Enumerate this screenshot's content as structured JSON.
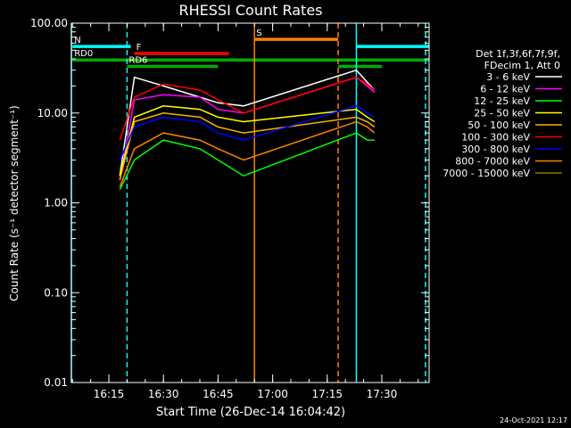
{
  "chart_data": {
    "type": "line",
    "title": "RHESSI Count Rates",
    "xlabel": "Start Time (26-Dec-14 16:04:42)",
    "ylabel": "Count Rate (s⁻¹ detector segment⁻¹)",
    "yscale": "log",
    "ylim": [
      0.01,
      100
    ],
    "xlim": [
      "16:04:42",
      "17:43:00"
    ],
    "x_ticks": [
      "16:15",
      "16:30",
      "16:45",
      "17:00",
      "17:15",
      "17:30"
    ],
    "y_ticks": [
      "0.01",
      "0.10",
      "1.00",
      "10.00",
      "100.00"
    ],
    "grid": false,
    "legend_position": "right",
    "legend_header": [
      "Det 1f,3f,6f,7f,9f,",
      "FDecim 1, Att 0"
    ],
    "series": [
      {
        "name": "3 - 6 keV",
        "color": "#ffffff",
        "x": [
          "16:18",
          "16:22",
          "16:30",
          "16:40",
          "16:45",
          "16:52",
          "17:23",
          "17:26",
          "17:28"
        ],
        "values": [
          2.0,
          25,
          20,
          15,
          13,
          12,
          30,
          22,
          18
        ]
      },
      {
        "name": "6 - 12 keV",
        "color": "#ff00ff",
        "x": [
          "16:18",
          "16:22",
          "16:30",
          "16:40",
          "16:45",
          "16:52",
          "17:23",
          "17:26",
          "17:28"
        ],
        "values": [
          1.8,
          14,
          16,
          15,
          11,
          10,
          25,
          20,
          17
        ]
      },
      {
        "name": "12 - 25 keV",
        "color": "#00ff00",
        "x": [
          "16:18",
          "16:22",
          "16:30",
          "16:40",
          "16:45",
          "16:52",
          "17:23",
          "17:26",
          "17:28"
        ],
        "values": [
          1.4,
          3,
          5,
          4,
          3,
          2,
          6,
          5,
          5
        ]
      },
      {
        "name": "25 - 50 keV",
        "color": "#ffff00",
        "x": [
          "16:18",
          "16:22",
          "16:30",
          "16:40",
          "16:45",
          "16:52",
          "17:23",
          "17:26",
          "17:28"
        ],
        "values": [
          2.0,
          9,
          12,
          11,
          9,
          8,
          11,
          9,
          8
        ]
      },
      {
        "name": "50 - 100 keV",
        "color": "#ffb000",
        "x": [
          "16:18",
          "16:22",
          "16:30",
          "16:40",
          "16:45",
          "16:52",
          "17:23",
          "17:26",
          "17:28"
        ],
        "values": [
          1.8,
          8,
          10,
          9,
          7,
          6,
          9,
          8,
          7
        ]
      },
      {
        "name": "100 - 300 keV",
        "color": "#ff0000",
        "x": [
          "16:18",
          "16:22",
          "16:30",
          "16:40",
          "16:45",
          "16:52",
          "17:23",
          "17:26",
          "17:28"
        ],
        "values": [
          5,
          15,
          21,
          18,
          14,
          10,
          25,
          21,
          18
        ]
      },
      {
        "name": "300 - 800 keV",
        "color": "#0000ff",
        "x": [
          "16:18",
          "16:22",
          "16:30",
          "16:40",
          "16:45",
          "16:52",
          "17:23",
          "17:26",
          "17:28"
        ],
        "values": [
          3,
          7,
          9,
          8,
          6,
          5,
          12,
          10,
          9
        ]
      },
      {
        "name": "800 - 7000 keV",
        "color": "#ff8000",
        "x": [
          "16:18",
          "16:22",
          "16:30",
          "16:40",
          "16:45",
          "16:52",
          "17:23",
          "17:26",
          "17:28"
        ],
        "values": [
          1.5,
          4,
          6,
          5,
          4,
          3,
          8,
          7,
          6
        ]
      },
      {
        "name": "7000 - 15000 keV",
        "color": "#808000",
        "x": [],
        "values": []
      }
    ],
    "flag_bars": [
      {
        "label": "N",
        "color": "#00ffff",
        "segments": [
          [
            "16:05",
            "16:21"
          ],
          [
            "17:23",
            "17:43"
          ]
        ],
        "level": 55
      },
      {
        "label": "S",
        "color": "#ff8000",
        "segments": [
          [
            "16:55",
            "17:18"
          ]
        ],
        "level": 66
      },
      {
        "label": "F",
        "color": "#ff0000",
        "segments": [
          [
            "16:22",
            "16:48"
          ]
        ],
        "level": 46
      },
      {
        "label": "RD0",
        "color": "#00aa00",
        "segments": [
          [
            "16:05",
            "17:43"
          ]
        ],
        "level": 39
      },
      {
        "label": "RD6",
        "color": "#00aa00",
        "segments": [
          [
            "16:20",
            "16:45"
          ],
          [
            "17:18",
            "17:30"
          ]
        ],
        "level": 33
      }
    ],
    "vertical_lines": [
      {
        "x": "16:04:42",
        "color": "#00ffff",
        "style": "solid"
      },
      {
        "x": "16:20",
        "color": "#00ffff",
        "style": "dashed"
      },
      {
        "x": "16:55",
        "color": "#ff8000",
        "style": "solid"
      },
      {
        "x": "17:18",
        "color": "#ff8000",
        "style": "dashed"
      },
      {
        "x": "17:23",
        "color": "#00ffff",
        "style": "solid"
      },
      {
        "x": "17:42",
        "color": "#00ffff",
        "style": "dashed"
      }
    ]
  },
  "footer_timestamp": "24-Oct-2021 12:17"
}
